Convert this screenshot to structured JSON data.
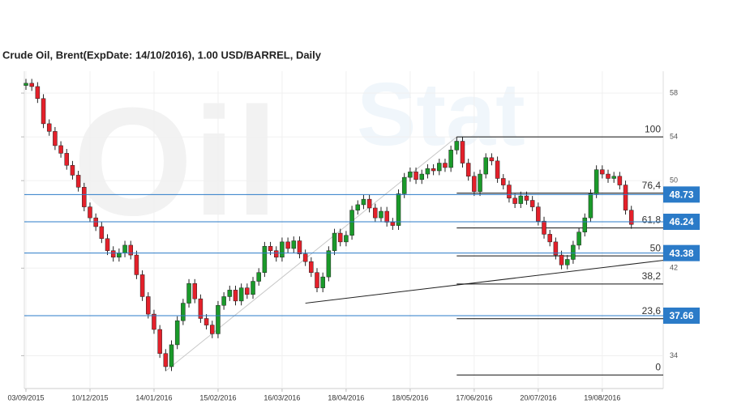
{
  "chart_data": {
    "type": "candlestick",
    "title": "Crude Oil, Brent(ExpDate: 14/10/2016), 1.00 USD/BARREL, Daily",
    "watermark": [
      "Oil",
      "Stat"
    ],
    "ylim": [
      31,
      60
    ],
    "yticks": [
      34,
      42,
      50,
      54,
      58
    ],
    "grid": true,
    "up_color": "#1a9a2a",
    "down_color": "#e4202a",
    "xticks": [
      {
        "index": 0,
        "label": "03/09/2015"
      },
      {
        "index": 11,
        "label": "10/12/2015"
      },
      {
        "index": 22,
        "label": "14/01/2016"
      },
      {
        "index": 33,
        "label": "15/02/2016"
      },
      {
        "index": 44,
        "label": "16/03/2016"
      },
      {
        "index": 55,
        "label": "18/04/2016"
      },
      {
        "index": 66,
        "label": "18/05/2016"
      },
      {
        "index": 77,
        "label": "17/06/2016"
      },
      {
        "index": 88,
        "label": "20/07/2016"
      },
      {
        "index": 99,
        "label": "19/08/2016"
      }
    ],
    "open": [
      58.7,
      58.9,
      58.6,
      57.5,
      55.2,
      54.5,
      53.2,
      52.5,
      51.4,
      50.5,
      49.4,
      47.6,
      46.6,
      45.8,
      44.7,
      43.6,
      43.0,
      43.4,
      44.1,
      43.2,
      41.4,
      39.4,
      37.8,
      36.4,
      34.2,
      33.0,
      35.0,
      37.2,
      38.8,
      40.6,
      39.2,
      37.4,
      36.8,
      36.0,
      38.6,
      39.4,
      40.0,
      39.0,
      40.2,
      39.6,
      40.8,
      41.6,
      44.0,
      43.6,
      43.0,
      44.4,
      43.8,
      44.5,
      43.3,
      42.6,
      41.6,
      40.2,
      41.2,
      43.6,
      45.2,
      44.4,
      45.0,
      47.3,
      47.8,
      48.3,
      47.5,
      46.6,
      47.2,
      46.2,
      45.9,
      48.8,
      50.3,
      50.8,
      50.1,
      50.6,
      51.1,
      50.9,
      51.6,
      51.2,
      52.8,
      53.6,
      51.6,
      50.4,
      49.0,
      50.6,
      52.1,
      51.8,
      50.2,
      49.6,
      48.4,
      47.9,
      48.6,
      48.2,
      47.6,
      46.3,
      45.1,
      44.4,
      43.2,
      42.3,
      42.8,
      44.1,
      45.3,
      46.6,
      48.8,
      51.0,
      50.6,
      50.2,
      50.4,
      49.6,
      47.3
    ],
    "high": [
      59.3,
      59.3,
      59.0,
      57.9,
      55.6,
      54.9,
      53.6,
      52.9,
      51.8,
      50.9,
      49.8,
      48.0,
      47.0,
      46.2,
      45.1,
      44.0,
      43.8,
      44.5,
      44.5,
      43.6,
      41.8,
      39.8,
      38.2,
      36.8,
      34.6,
      35.4,
      37.6,
      39.2,
      41.0,
      41.0,
      39.6,
      37.8,
      37.2,
      39.0,
      39.8,
      40.4,
      40.4,
      40.6,
      40.6,
      41.2,
      42.0,
      44.4,
      44.4,
      44.0,
      44.8,
      44.8,
      44.9,
      44.9,
      43.7,
      43.0,
      42.0,
      41.6,
      44.0,
      45.6,
      45.6,
      45.4,
      47.7,
      48.2,
      48.7,
      48.7,
      47.9,
      47.6,
      47.6,
      46.6,
      49.2,
      50.7,
      51.2,
      51.2,
      51.0,
      51.5,
      51.5,
      52.0,
      52.0,
      53.2,
      54.0,
      54.0,
      52.0,
      50.8,
      51.0,
      52.5,
      52.5,
      52.2,
      50.6,
      50.0,
      48.8,
      49.0,
      49.0,
      48.6,
      48.0,
      46.7,
      45.5,
      44.8,
      43.6,
      43.2,
      44.5,
      45.7,
      47.0,
      49.2,
      51.4,
      51.4,
      51.0,
      50.8,
      50.8,
      50.0,
      47.7
    ],
    "low": [
      58.3,
      58.2,
      57.1,
      54.8,
      54.1,
      52.8,
      52.1,
      51.0,
      50.1,
      49.0,
      47.2,
      46.2,
      45.4,
      44.3,
      43.2,
      42.6,
      42.6,
      43.0,
      42.8,
      41.0,
      39.0,
      37.4,
      36.0,
      33.8,
      32.6,
      32.6,
      34.6,
      36.8,
      38.4,
      38.8,
      37.0,
      36.4,
      35.6,
      35.6,
      38.2,
      39.0,
      38.6,
      38.6,
      39.2,
      39.2,
      40.4,
      41.2,
      43.2,
      42.6,
      42.6,
      43.4,
      43.4,
      42.9,
      42.2,
      41.2,
      39.8,
      39.8,
      40.8,
      43.2,
      44.0,
      44.0,
      44.6,
      46.9,
      47.4,
      47.1,
      46.2,
      46.2,
      45.8,
      45.5,
      45.5,
      48.4,
      49.9,
      49.7,
      49.7,
      50.2,
      50.5,
      50.5,
      50.8,
      50.8,
      52.4,
      51.2,
      50.0,
      48.6,
      48.6,
      50.2,
      51.4,
      49.8,
      49.2,
      48.0,
      47.5,
      47.5,
      47.8,
      47.2,
      45.9,
      44.7,
      44.0,
      42.8,
      41.9,
      41.9,
      42.4,
      43.7,
      44.9,
      46.2,
      48.4,
      50.2,
      49.8,
      49.8,
      49.2,
      46.9,
      45.6
    ],
    "close": [
      58.9,
      58.6,
      57.5,
      55.2,
      54.5,
      53.2,
      52.5,
      51.4,
      50.5,
      49.4,
      47.6,
      46.6,
      45.8,
      44.7,
      43.6,
      43.0,
      43.4,
      44.1,
      43.2,
      41.4,
      39.4,
      37.8,
      36.4,
      34.2,
      33.0,
      35.0,
      37.2,
      38.8,
      40.6,
      39.2,
      37.4,
      36.8,
      36.0,
      38.6,
      39.4,
      40.0,
      39.0,
      40.2,
      39.6,
      40.8,
      41.6,
      44.0,
      43.6,
      43.0,
      44.4,
      43.8,
      44.5,
      43.3,
      42.6,
      41.6,
      40.2,
      41.2,
      43.6,
      45.2,
      44.4,
      45.0,
      47.3,
      47.8,
      48.3,
      47.5,
      46.6,
      47.2,
      46.2,
      45.9,
      48.8,
      50.3,
      50.8,
      50.1,
      50.6,
      51.1,
      50.9,
      51.6,
      51.2,
      52.8,
      53.6,
      51.6,
      50.4,
      49.0,
      50.6,
      52.1,
      51.8,
      50.2,
      49.6,
      48.4,
      47.9,
      48.6,
      48.2,
      47.6,
      46.3,
      45.1,
      44.4,
      43.2,
      42.3,
      42.8,
      44.1,
      45.3,
      46.6,
      48.8,
      51.0,
      50.6,
      50.2,
      50.4,
      49.6,
      47.3,
      46.0
    ],
    "price_lines": {
      "color": "#2b7bc8",
      "values": [
        48.73,
        46.24,
        43.38,
        37.66
      ]
    },
    "trend_lines": [
      {
        "color": "#c8c8c8",
        "from": {
          "index": 24,
          "price": 32.6
        },
        "to": {
          "index": 74,
          "price": 54.0
        }
      },
      {
        "color": "#222222",
        "from": {
          "index": 48,
          "price": 38.8
        },
        "to": {
          "index": 104,
          "price": 42.37
        }
      }
    ],
    "fibonacci": {
      "start_index": 74,
      "levels": [
        {
          "label": "100",
          "price": 54.0
        },
        {
          "label": "76,4",
          "price": 48.86
        },
        {
          "label": "61,8",
          "price": 45.68
        },
        {
          "label": "50",
          "price": 43.12
        },
        {
          "label": "38,2",
          "price": 40.55
        },
        {
          "label": "23,6",
          "price": 37.38
        },
        {
          "label": "0",
          "price": 32.24
        }
      ]
    }
  }
}
